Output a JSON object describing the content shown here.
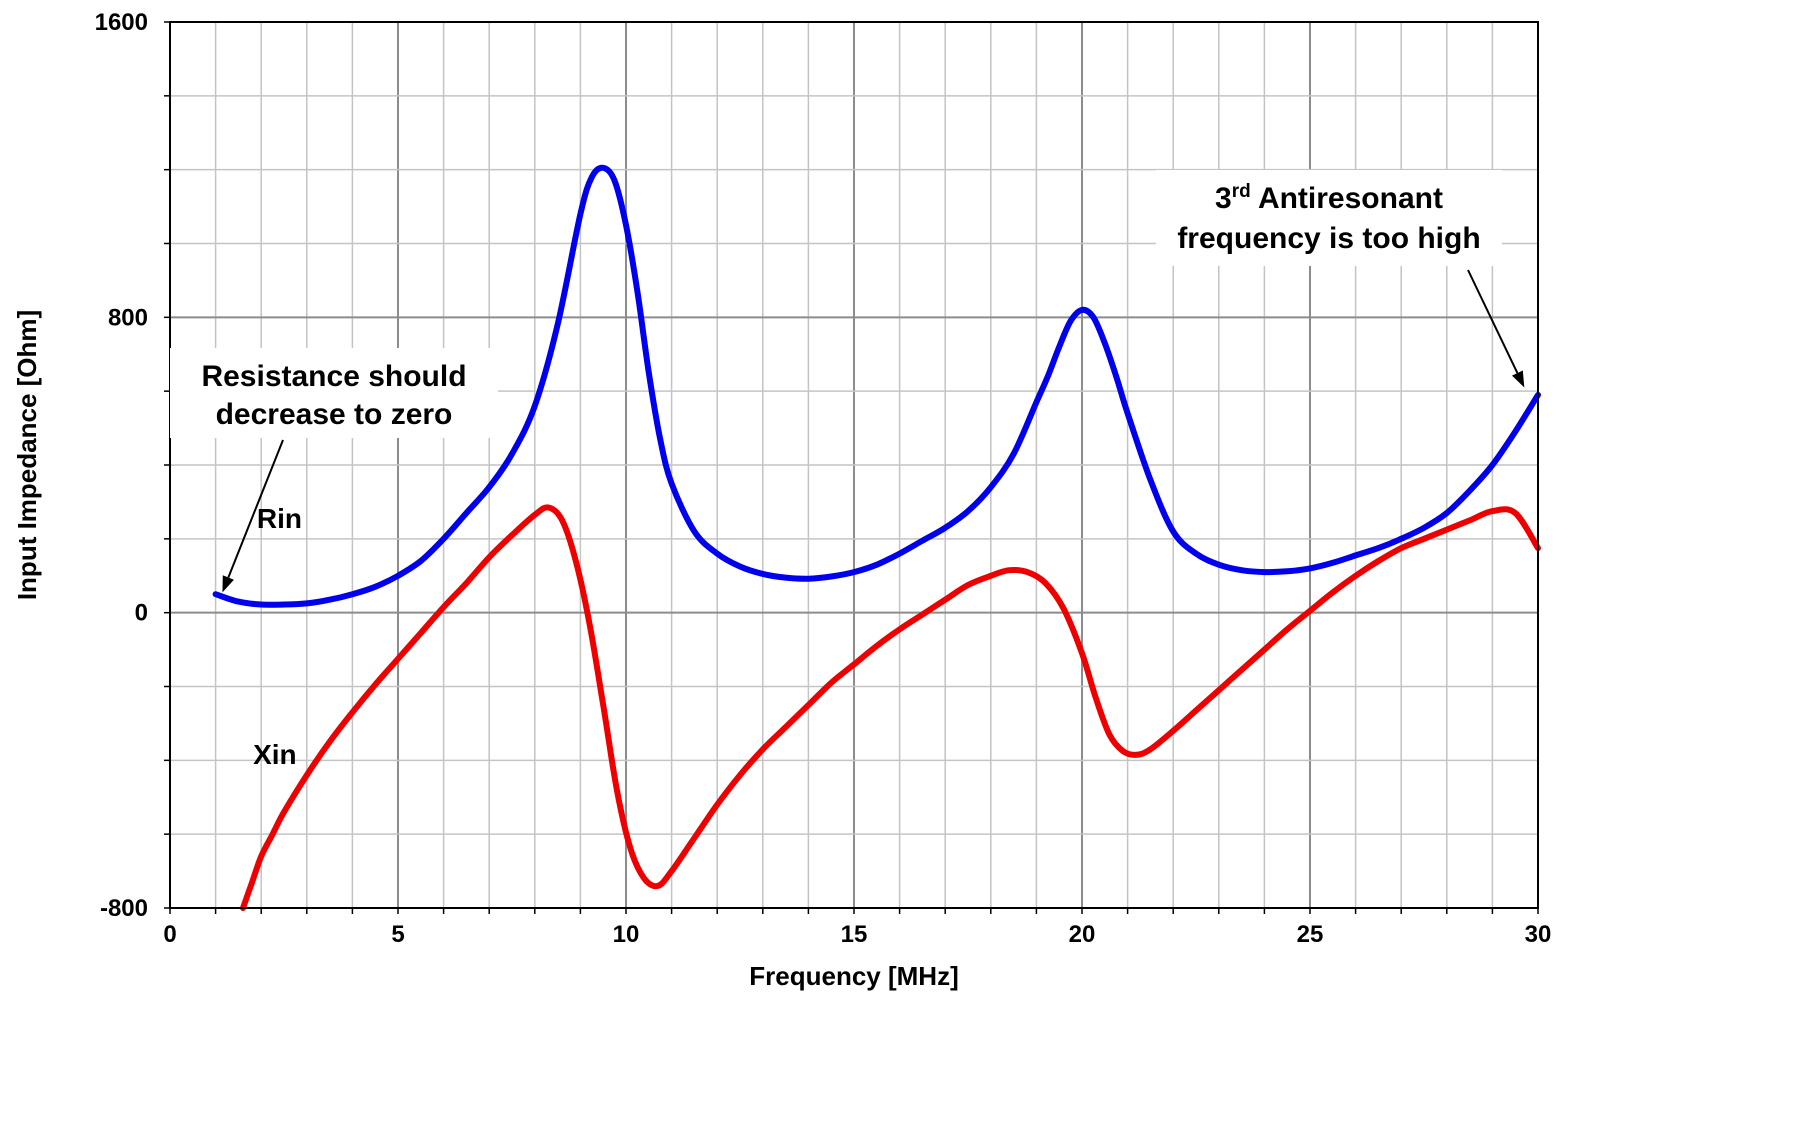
{
  "chart_data": {
    "type": "line",
    "xlabel": "Frequency [MHz]",
    "ylabel": "Input Impedance [Ohm]",
    "xlim": [
      0,
      30
    ],
    "ylim": [
      -800,
      1600
    ],
    "x_ticks": [
      0,
      5,
      10,
      15,
      20,
      25,
      30
    ],
    "x_tick_labels": [
      "0",
      "5",
      "10",
      "15",
      "20",
      "25",
      "30"
    ],
    "y_ticks": [
      -800,
      0,
      800,
      1600
    ],
    "y_tick_labels": [
      "-800",
      "0",
      "800",
      "1600"
    ],
    "x_grid_step": 1,
    "y_grid_step": 200,
    "grid": true,
    "legend": "none",
    "series": [
      {
        "name": "Rin",
        "color": "#0000ee",
        "x": [
          1,
          1.5,
          2,
          2.5,
          3,
          3.5,
          4,
          4.5,
          5,
          5.5,
          6,
          6.5,
          7,
          7.5,
          8,
          8.5,
          9,
          9.25,
          9.5,
          9.75,
          10,
          10.25,
          10.5,
          10.75,
          11,
          11.5,
          12,
          12.5,
          13,
          13.5,
          14,
          14.5,
          15,
          15.5,
          16,
          16.5,
          17,
          17.5,
          18,
          18.5,
          19,
          19.25,
          19.5,
          19.75,
          20,
          20.25,
          20.5,
          20.75,
          21,
          21.5,
          22,
          22.5,
          23,
          23.5,
          24,
          24.5,
          25,
          25.5,
          26,
          26.5,
          27,
          27.5,
          28,
          28.5,
          29,
          29.5,
          30
        ],
        "y": [
          50,
          30,
          22,
          22,
          25,
          35,
          50,
          70,
          100,
          140,
          200,
          270,
          340,
          430,
          560,
          780,
          1080,
          1180,
          1205,
          1170,
          1050,
          870,
          650,
          470,
          350,
          220,
          160,
          125,
          105,
          95,
          92,
          98,
          110,
          130,
          160,
          195,
          230,
          275,
          340,
          430,
          570,
          640,
          720,
          790,
          820,
          800,
          730,
          640,
          540,
          360,
          220,
          160,
          130,
          115,
          110,
          112,
          120,
          135,
          155,
          175,
          200,
          230,
          270,
          330,
          400,
          490,
          590
        ]
      },
      {
        "name": "Xin",
        "color": "#ee0000",
        "x": [
          1.6,
          1.8,
          2,
          2.25,
          2.5,
          3,
          3.5,
          4,
          4.5,
          5,
          5.5,
          6,
          6.5,
          7,
          7.5,
          8,
          8.3,
          8.6,
          8.9,
          9.2,
          9.5,
          9.8,
          10.1,
          10.4,
          10.7,
          11,
          11.5,
          12,
          12.5,
          13,
          13.5,
          14,
          14.5,
          15,
          15.5,
          16,
          16.5,
          17,
          17.5,
          18,
          18.4,
          18.8,
          19.2,
          19.6,
          20,
          20.3,
          20.6,
          20.9,
          21.2,
          21.5,
          22,
          22.5,
          23,
          23.5,
          24,
          24.5,
          25,
          25.5,
          26,
          26.5,
          27,
          27.5,
          28,
          28.5,
          29,
          29.5,
          30
        ],
        "y": [
          -800,
          -730,
          -660,
          -600,
          -540,
          -440,
          -350,
          -270,
          -195,
          -125,
          -55,
          15,
          80,
          150,
          210,
          265,
          285,
          250,
          140,
          -30,
          -250,
          -480,
          -640,
          -720,
          -740,
          -700,
          -610,
          -520,
          -440,
          -370,
          -310,
          -250,
          -190,
          -140,
          -90,
          -45,
          -5,
          35,
          75,
          100,
          115,
          110,
          80,
          10,
          -110,
          -230,
          -330,
          -375,
          -385,
          -370,
          -320,
          -265,
          -210,
          -155,
          -100,
          -45,
          5,
          55,
          100,
          140,
          175,
          200,
          225,
          250,
          275,
          270,
          175
        ]
      }
    ],
    "series_labels": [
      {
        "text": "Rin",
        "x": 2.4,
        "y": 230
      },
      {
        "text": "Xin",
        "x": 2.3,
        "y": -410
      }
    ],
    "annotations": [
      {
        "lines": [
          "Resistance should",
          "decrease to zero"
        ],
        "arrow_to": [
          1.15,
          55
        ]
      },
      {
        "lines": [
          [
            "3",
            "rd",
            " Antiresonant"
          ],
          "frequency is too high"
        ],
        "arrow_to": [
          29.7,
          610
        ]
      }
    ]
  }
}
